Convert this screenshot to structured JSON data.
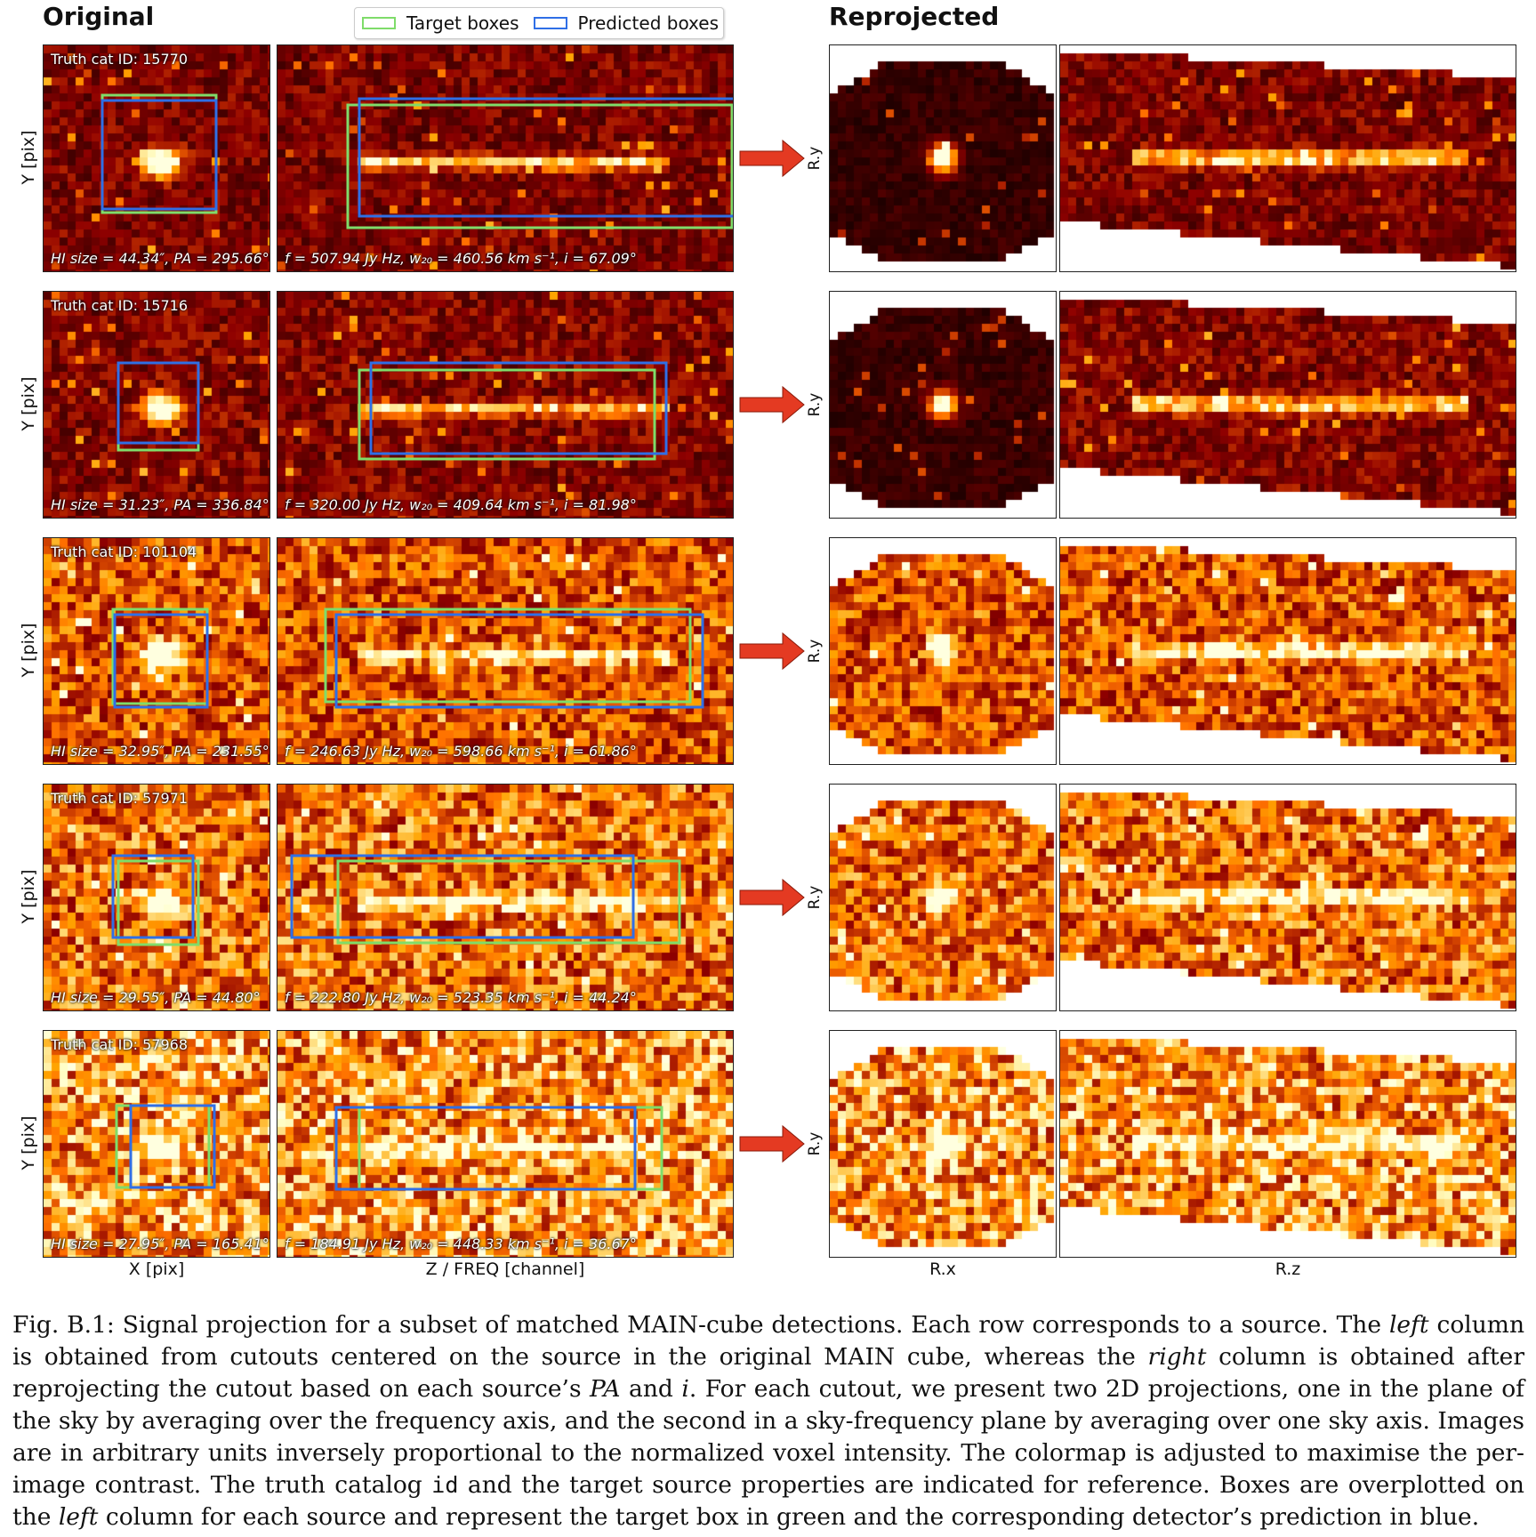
{
  "headings": {
    "original": "Original",
    "reprojected": "Reprojected"
  },
  "legend": {
    "target": "Target boxes",
    "predicted": "Predicted boxes",
    "target_color": "#7fdc6a",
    "predicted_color": "#2f6fe6"
  },
  "axes": {
    "ylabel": "Y [pix]",
    "xlabel_sky": "X [pix]",
    "xlabel_freq": "Z / FREQ [channel]",
    "ry": "R.y",
    "rx": "R.x",
    "rz": "R.z"
  },
  "rows": [
    {
      "id_label": "Truth cat ID: 15770",
      "size_text": "HI size = 44.34″,  PA = 295.66°",
      "prop_text": "f = 507.94 Jy Hz,  w₂₀ = 460.56 km s⁻¹,  i = 67.09°"
    },
    {
      "id_label": "Truth cat ID: 15716",
      "size_text": "HI size = 31.23″,  PA = 336.84°",
      "prop_text": "f = 320.00 Jy Hz,  w₂₀ = 409.64 km s⁻¹,  i = 81.98°"
    },
    {
      "id_label": "Truth cat ID: 101104",
      "size_text": "HI size = 32.95″,  PA = 231.55°",
      "prop_text": "f = 246.63 Jy Hz,  w₂₀ = 598.66 km s⁻¹,  i = 61.86°"
    },
    {
      "id_label": "Truth cat ID: 57971",
      "size_text": "HI size = 29.55″,  PA = 44.80°",
      "prop_text": "f = 222.80 Jy Hz,  w₂₀ = 523.35 km s⁻¹,  i = 44.24°"
    },
    {
      "id_label": "Truth cat ID: 57968",
      "size_text": "HI size = 27.95″,  PA = 165.41°",
      "prop_text": "f = 184.91 Jy Hz,  w₂₀ = 448.33 km s⁻¹,  i = 36.67°"
    }
  ],
  "caption": {
    "label": "Fig. B.1:",
    "s1": " Signal projection for a subset of matched MAIN-cube detections. Each row corresponds to a source. The ",
    "left1": "left",
    "s2": " column is obtained from cutouts centered on the source in the original MAIN cube, whereas the ",
    "right1": "right",
    "s3": " column is obtained after reprojecting the cutout based on each source’s ",
    "pa": "PA",
    "s4": " and ",
    "i": "i",
    "s5": ". For each cutout, we present two 2D projections, one in the plane of the sky by averaging over the frequency axis, and the second in a sky-frequency plane by averaging over one sky axis. Images are in arbitrary units inversely proportional to the normalized voxel intensity. The colormap is adjusted to maximise the per-image contrast. The truth catalog ",
    "code": "id",
    "s6": " and the target source properties are indicated for reference. Boxes are overplotted on the ",
    "left2": "left",
    "s7": " column for each source and represent the target box in green and the corresponding detector’s prediction in blue."
  }
}
